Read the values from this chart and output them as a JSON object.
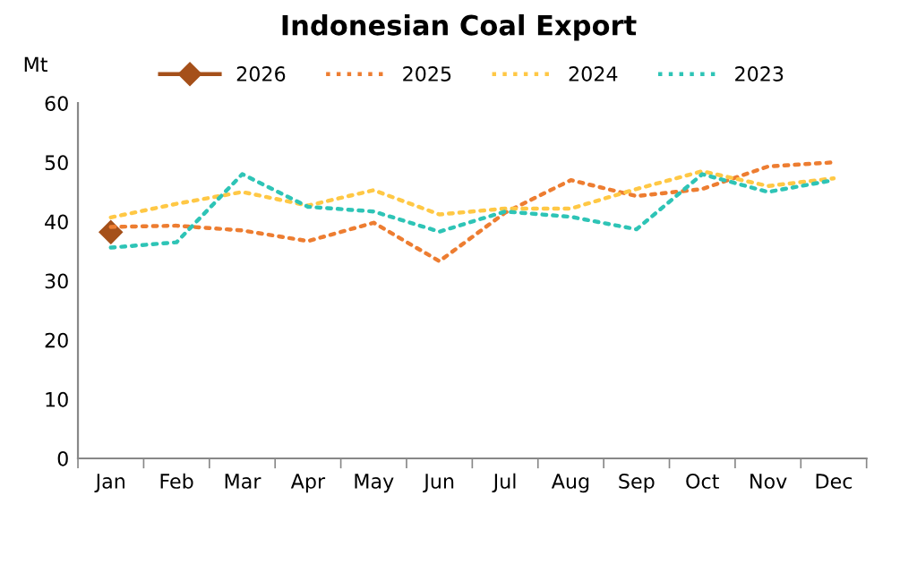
{
  "chart_data": {
    "type": "line",
    "title": "Indonesian Coal Export",
    "ylabel": "Mt",
    "categories": [
      "Jan",
      "Feb",
      "Mar",
      "Apr",
      "May",
      "Jun",
      "Jul",
      "Aug",
      "Sep",
      "Oct",
      "Nov",
      "Dec"
    ],
    "series": [
      {
        "name": "2026",
        "color": "#a5501a",
        "marker": "diamond",
        "line_style": "solid",
        "values": [
          38.2,
          null,
          null,
          null,
          null,
          null,
          null,
          null,
          null,
          null,
          null,
          null
        ]
      },
      {
        "name": "2025",
        "color": "#ed7d31",
        "marker": "none",
        "line_style": "dotted",
        "values": [
          39.1,
          39.3,
          38.5,
          36.7,
          39.8,
          33.3,
          41.5,
          47.0,
          44.3,
          45.5,
          49.3,
          50.0
        ]
      },
      {
        "name": "2024",
        "color": "#ffc845",
        "marker": "none",
        "line_style": "dotted",
        "values": [
          40.7,
          43.0,
          45.0,
          42.7,
          45.3,
          41.2,
          42.2,
          42.2,
          45.5,
          48.5,
          46.0,
          47.3
        ]
      },
      {
        "name": "2023",
        "color": "#2ec4b6",
        "marker": "none",
        "line_style": "dotted",
        "values": [
          35.6,
          36.5,
          48.0,
          42.5,
          41.7,
          38.3,
          41.7,
          40.8,
          38.7,
          48.0,
          45.0,
          47.0
        ]
      }
    ],
    "ylim": [
      0,
      60
    ],
    "yticks": [
      0,
      10,
      20,
      30,
      40,
      50,
      60
    ],
    "grid": false,
    "legend": "top"
  }
}
